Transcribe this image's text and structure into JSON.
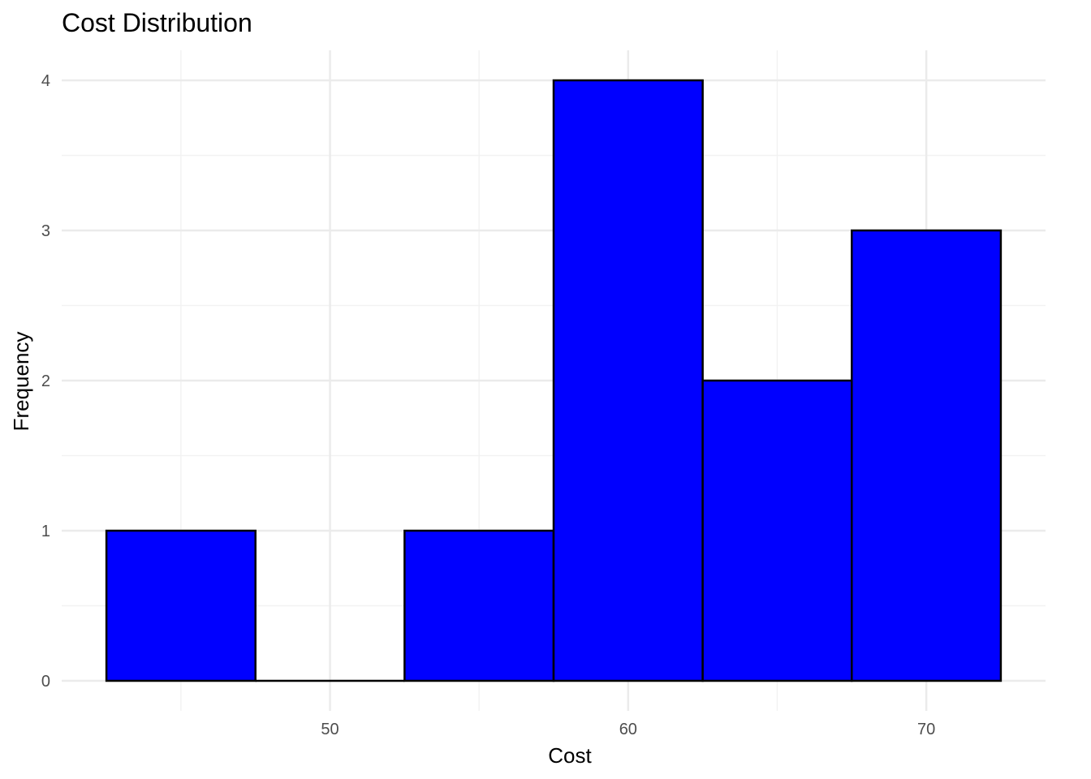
{
  "chart_data": {
    "type": "bar",
    "subtype": "histogram",
    "title": "Cost Distribution",
    "xlabel": "Cost",
    "ylabel": "Frequency",
    "bins": [
      {
        "x0": 42.5,
        "x1": 47.5,
        "count": 1
      },
      {
        "x0": 47.5,
        "x1": 52.5,
        "count": 0
      },
      {
        "x0": 52.5,
        "x1": 57.5,
        "count": 1
      },
      {
        "x0": 57.5,
        "x1": 62.5,
        "count": 4
      },
      {
        "x0": 62.5,
        "x1": 67.5,
        "count": 2
      },
      {
        "x0": 67.5,
        "x1": 72.5,
        "count": 3
      }
    ],
    "xlim": [
      41.0,
      74.0
    ],
    "ylim": [
      -0.2,
      4.2
    ],
    "x_ticks": [
      "50",
      "60",
      "70"
    ],
    "y_ticks": [
      "0",
      "1",
      "2",
      "3",
      "4"
    ],
    "grid": true,
    "legend": false,
    "bar_fill": "#0000ff",
    "bar_outline": "#000000"
  }
}
